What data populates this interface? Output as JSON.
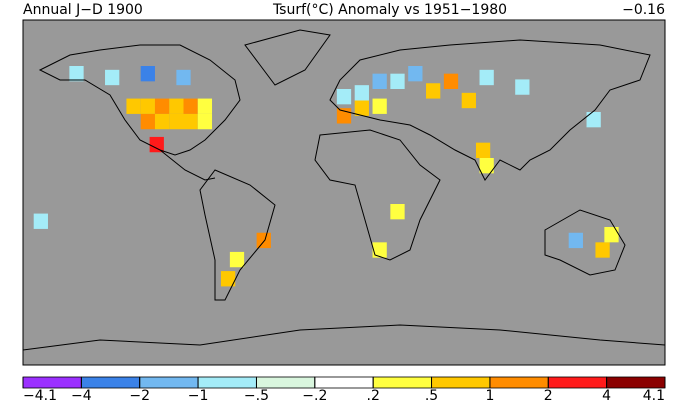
{
  "header": {
    "left": "Annual J−D 1900",
    "center": "Tsurf(°C) Anomaly vs 1951−1980",
    "right": "−0.16"
  },
  "colorbar": {
    "ticks": [
      {
        "value": -4.1,
        "label": "−4.1"
      },
      {
        "value": -4,
        "label": "−4"
      },
      {
        "value": -2,
        "label": "−2"
      },
      {
        "value": -1,
        "label": "−1"
      },
      {
        "value": -0.5,
        "label": "−.5"
      },
      {
        "value": -0.2,
        "label": "−.2"
      },
      {
        "value": 0.2,
        "label": ".2"
      },
      {
        "value": 0.5,
        "label": ".5"
      },
      {
        "value": 1,
        "label": "1"
      },
      {
        "value": 2,
        "label": "2"
      },
      {
        "value": 4,
        "label": "4"
      },
      {
        "value": 4.1,
        "label": "4.1"
      }
    ],
    "colors": [
      "#9b30ff",
      "#3b82e8",
      "#72b8f0",
      "#a4ecf8",
      "#d9f6de",
      "#ffffff",
      "#ffff40",
      "#ffc800",
      "#ff8c00",
      "#ff1a1a",
      "#8b0000"
    ]
  },
  "map": {
    "background": "#999999",
    "cells": [
      {
        "lon": -118,
        "lat": 45,
        "value": 0.7
      },
      {
        "lon": -110,
        "lat": 45,
        "value": 0.8
      },
      {
        "lon": -102,
        "lat": 45,
        "value": 1.2
      },
      {
        "lon": -94,
        "lat": 45,
        "value": 0.9
      },
      {
        "lon": -86,
        "lat": 45,
        "value": 1.3
      },
      {
        "lon": -78,
        "lat": 45,
        "value": 0.3
      },
      {
        "lon": -110,
        "lat": 37,
        "value": 1.1
      },
      {
        "lon": -102,
        "lat": 37,
        "value": 0.8
      },
      {
        "lon": -94,
        "lat": 37,
        "value": 0.7
      },
      {
        "lon": -86,
        "lat": 37,
        "value": 0.6
      },
      {
        "lon": -78,
        "lat": 37,
        "value": 0.4
      },
      {
        "lon": -105,
        "lat": 25,
        "value": 2.5
      },
      {
        "lon": -130,
        "lat": 60,
        "value": -0.8
      },
      {
        "lon": -110,
        "lat": 62,
        "value": -2.5
      },
      {
        "lon": -90,
        "lat": 60,
        "value": -1.2
      },
      {
        "lon": -150,
        "lat": 62,
        "value": -0.6
      },
      {
        "lon": 0,
        "lat": 50,
        "value": -0.7
      },
      {
        "lon": 10,
        "lat": 52,
        "value": -1.0
      },
      {
        "lon": 20,
        "lat": 58,
        "value": -1.4
      },
      {
        "lon": 30,
        "lat": 58,
        "value": -0.8
      },
      {
        "lon": 40,
        "lat": 62,
        "value": -1.5
      },
      {
        "lon": 60,
        "lat": 58,
        "value": 1.2
      },
      {
        "lon": 50,
        "lat": 53,
        "value": 0.7
      },
      {
        "lon": 20,
        "lat": 45,
        "value": 0.4
      },
      {
        "lon": 10,
        "lat": 44,
        "value": 0.6
      },
      {
        "lon": 0,
        "lat": 40,
        "value": 1.0
      },
      {
        "lon": 80,
        "lat": 60,
        "value": -0.6
      },
      {
        "lon": 100,
        "lat": 55,
        "value": -0.8
      },
      {
        "lon": 70,
        "lat": 48,
        "value": 0.5
      },
      {
        "lon": 78,
        "lat": 22,
        "value": 0.8
      },
      {
        "lon": 80,
        "lat": 14,
        "value": 0.4
      },
      {
        "lon": 130,
        "lat": -25,
        "value": -1.2
      },
      {
        "lon": 145,
        "lat": -30,
        "value": 0.6
      },
      {
        "lon": 150,
        "lat": -22,
        "value": 0.3
      },
      {
        "lon": -60,
        "lat": -35,
        "value": 0.4
      },
      {
        "lon": -65,
        "lat": -45,
        "value": 0.6
      },
      {
        "lon": -45,
        "lat": -25,
        "value": 1.5
      },
      {
        "lon": 140,
        "lat": 38,
        "value": -0.7
      },
      {
        "lon": 20,
        "lat": -30,
        "value": 0.4
      },
      {
        "lon": 30,
        "lat": -10,
        "value": 0.2
      },
      {
        "lon": -170,
        "lat": -15,
        "value": -0.8
      }
    ]
  }
}
